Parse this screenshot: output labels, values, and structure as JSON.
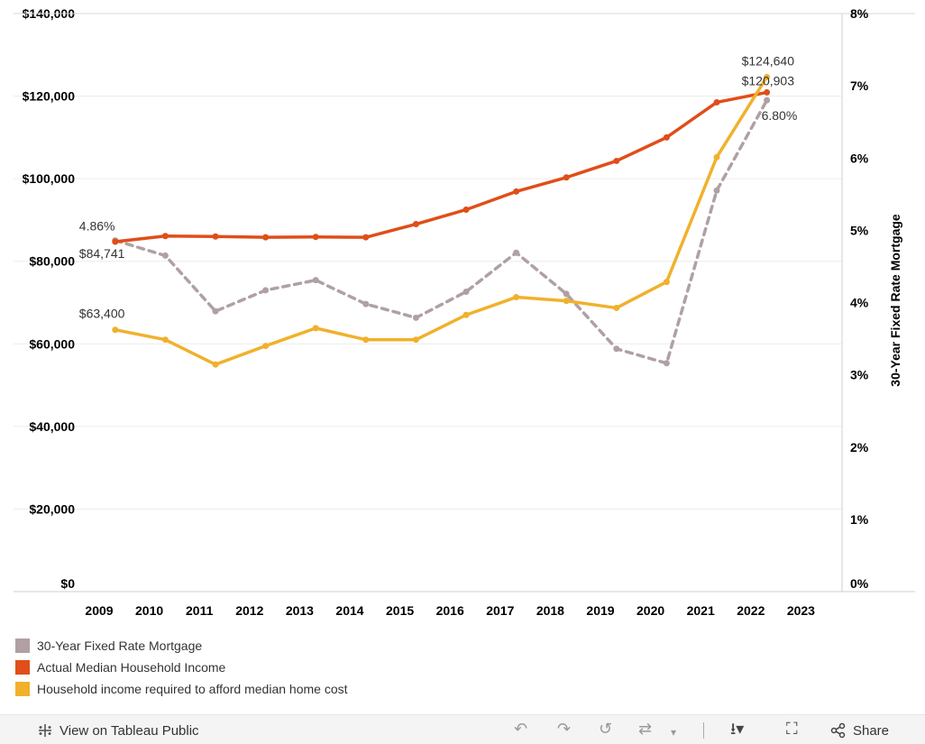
{
  "chart_data": {
    "type": "line",
    "x": [
      "2009",
      "2010",
      "2011",
      "2012",
      "2013",
      "2014",
      "2015",
      "2016",
      "2017",
      "2018",
      "2019",
      "2020",
      "2021",
      "2022"
    ],
    "x_axis_ticks": [
      "2009",
      "2010",
      "2011",
      "2012",
      "2013",
      "2014",
      "2015",
      "2016",
      "2017",
      "2018",
      "2019",
      "2020",
      "2021",
      "2022",
      "2023"
    ],
    "y_left": {
      "range": [
        0,
        140000
      ],
      "ticks": [
        "$0",
        "$20,000",
        "$40,000",
        "$60,000",
        "$80,000",
        "$100,000",
        "$120,000",
        "$140,000"
      ]
    },
    "y_right": {
      "label": "30-Year Fixed Rate Mortgage",
      "range": [
        0,
        8
      ],
      "ticks": [
        "0%",
        "1%",
        "2%",
        "3%",
        "4%",
        "5%",
        "6%",
        "7%",
        "8%"
      ]
    },
    "series": [
      {
        "name": "30-Year Fixed Rate Mortgage",
        "axis": "right",
        "color": "#b0a0a3",
        "style": "dashed",
        "values": [
          4.86,
          4.65,
          3.88,
          4.17,
          4.31,
          3.98,
          3.79,
          4.15,
          4.69,
          4.12,
          3.36,
          3.16,
          5.55,
          6.8
        ]
      },
      {
        "name": "Actual Median Household Income",
        "axis": "left",
        "color": "#e04e19",
        "style": "solid",
        "values": [
          84741,
          86100,
          86000,
          85800,
          85900,
          85800,
          89000,
          92500,
          96900,
          100300,
          104300,
          110000,
          118500,
          120903
        ]
      },
      {
        "name": "Household income required to afford median home cost",
        "axis": "left",
        "color": "#f0b12c",
        "style": "solid",
        "values": [
          63400,
          61000,
          55000,
          59500,
          63800,
          61000,
          61000,
          67000,
          71300,
          70400,
          68700,
          75000,
          105200,
          124640
        ]
      }
    ],
    "annotations": [
      {
        "text": "4.86%",
        "series": 0,
        "point": 0
      },
      {
        "text": "$84,741",
        "series": 1,
        "point": 0
      },
      {
        "text": "$63,400",
        "series": 2,
        "point": 0
      },
      {
        "text": "$124,640",
        "series": 2,
        "point": 13
      },
      {
        "text": "$120,903",
        "series": 1,
        "point": 13
      },
      {
        "text": "6.80%",
        "series": 0,
        "point": 13
      }
    ]
  },
  "legend": {
    "items": [
      {
        "label": "30-Year Fixed Rate Mortgage",
        "color": "#b0a0a3"
      },
      {
        "label": "Actual Median Household Income",
        "color": "#e04e19"
      },
      {
        "label": "Household income required to afford median home cost",
        "color": "#f0b12c"
      }
    ]
  },
  "toolbar": {
    "view_label": "View on Tableau Public",
    "share_label": "Share"
  }
}
